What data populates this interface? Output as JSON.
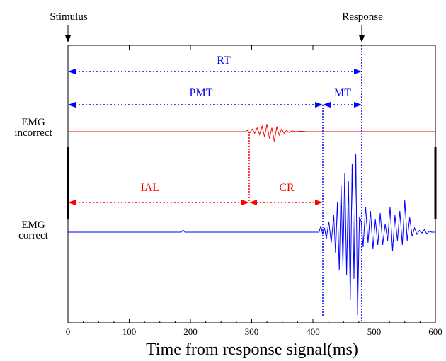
{
  "chart_data": {
    "type": "line",
    "xlabel": "Time from response signal(ms)",
    "xlim": [
      0,
      600
    ],
    "x_ticks": [
      "0",
      "100",
      "200",
      "300",
      "400",
      "500",
      "600"
    ],
    "top_labels": {
      "stimulus": "Stimulus",
      "response": "Response"
    },
    "row_labels": {
      "incorrect": [
        "EMG",
        "incorrect"
      ],
      "correct": [
        "EMG",
        "correct"
      ]
    },
    "events_ms": {
      "stimulus": 0,
      "incorrect_onset": 293,
      "correct_onset": 410,
      "response": 475
    },
    "intervals": [
      {
        "label": "RT",
        "start": 0,
        "end": 475,
        "color": "#0000ff"
      },
      {
        "label": "PMT",
        "start": 0,
        "end": 410,
        "color": "#0000ff"
      },
      {
        "label": "MT",
        "start": 410,
        "end": 475,
        "color": "#0000ff"
      },
      {
        "label": "IAL",
        "start": 0,
        "end": 293,
        "color": "#ff0000"
      },
      {
        "label": "CR",
        "start": 293,
        "end": 410,
        "color": "#ff0000"
      }
    ],
    "series": [
      {
        "color": "#ff0000",
        "x": [
          0,
          290,
          293,
          297,
          301,
          305,
          309,
          313,
          317,
          321,
          325,
          329,
          333,
          337,
          341,
          345,
          349,
          353,
          357,
          361,
          366,
          372,
          380,
          390,
          420,
          600
        ],
        "y": [
          0,
          0,
          0.3,
          -0.3,
          0.6,
          -0.4,
          0.9,
          -0.7,
          1.3,
          -1.2,
          1.8,
          -1.6,
          0.9,
          -2.3,
          1.2,
          -0.8,
          0.6,
          -0.4,
          0.3,
          -0.2,
          0.2,
          0,
          0.1,
          0,
          0,
          0
        ]
      },
      {
        "color": "#0000ff",
        "x": [
          0,
          185,
          188,
          191,
          410,
          413,
          416,
          419,
          422,
          426,
          430,
          434,
          437,
          440,
          443,
          446,
          449,
          452,
          455,
          458,
          461,
          464,
          467,
          470,
          473,
          476,
          479,
          482,
          486,
          490,
          494,
          498,
          502,
          506,
          510,
          514,
          518,
          522,
          526,
          530,
          534,
          538,
          542,
          546,
          550,
          554,
          558,
          562,
          566,
          570,
          574,
          578,
          582,
          586,
          590,
          594,
          600
        ],
        "y": [
          0,
          0,
          0.5,
          0,
          0,
          1.5,
          -0.5,
          1.0,
          -1.5,
          2.5,
          -2.5,
          4.0,
          -5.0,
          7.0,
          -9.0,
          11.0,
          -8.0,
          14.0,
          -10.0,
          12.0,
          -16.0,
          16.0,
          -11.0,
          18.5,
          -19.5,
          3.5,
          2.5,
          -3.5,
          6.0,
          -2.5,
          5.0,
          -4.0,
          3.0,
          -3.0,
          4.5,
          -3.0,
          2.0,
          -2.0,
          6.0,
          -4.5,
          4.0,
          -2.0,
          5.0,
          -3.0,
          7.5,
          -2.0,
          3.5,
          -1.0,
          1.0,
          -0.5,
          0.4,
          -0.2,
          0.6,
          -0.4,
          0.2,
          0,
          0
        ]
      }
    ]
  }
}
